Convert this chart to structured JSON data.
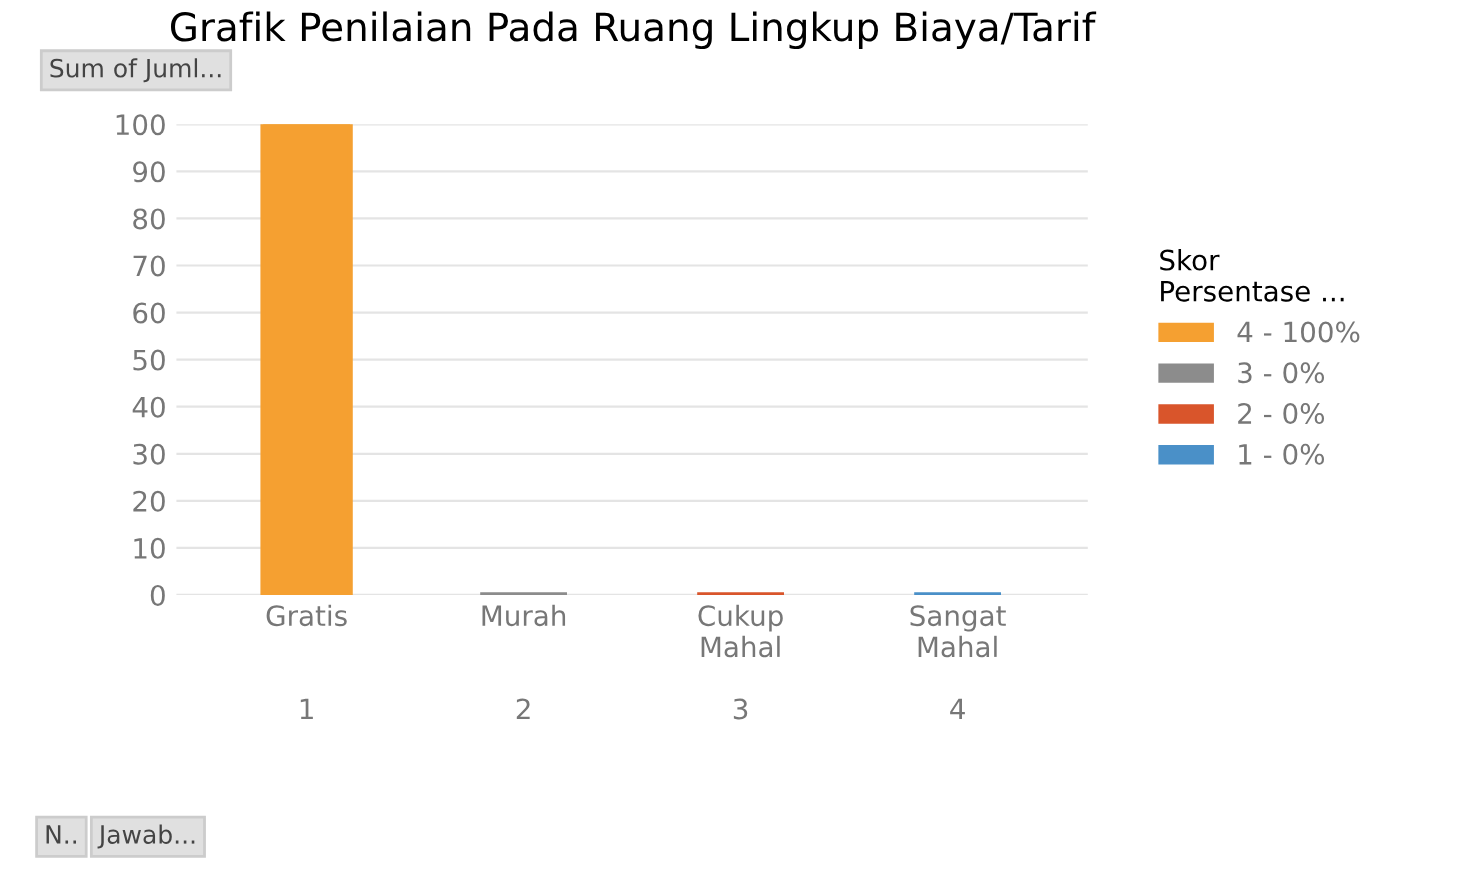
{
  "chart_data": {
    "type": "bar",
    "title": "Grafik Penilaian Pada Ruang Lingkup Biaya/Tarif",
    "ylabel": "Sum of Juml...",
    "legend_title": "Skor\nPersentase ...",
    "categories": [
      "Gratis\n\n\n1",
      "Murah\n\n\n2",
      "Cukup\nMahal\n\n3",
      "Sangat\nMahal\n\n4"
    ],
    "series": [
      {
        "name": "4 - 100%",
        "color": "#f5a031",
        "values": [
          100,
          null,
          null,
          null
        ]
      },
      {
        "name": "3 - 0%",
        "color": "#8c8c8c",
        "values": [
          null,
          0,
          null,
          null
        ]
      },
      {
        "name": "2 - 0%",
        "color": "#d9552b",
        "values": [
          null,
          null,
          0,
          null
        ]
      },
      {
        "name": "1 - 0%",
        "color": "#4a90c8",
        "values": [
          null,
          null,
          null,
          0
        ]
      }
    ],
    "annotations": [
      "N..",
      "Jawab..."
    ],
    "ylim": [
      0,
      100
    ],
    "yticks": [
      0,
      10,
      20,
      30,
      40,
      50,
      60,
      70,
      80,
      90,
      100
    ],
    "grid": "y",
    "legend": "right"
  }
}
